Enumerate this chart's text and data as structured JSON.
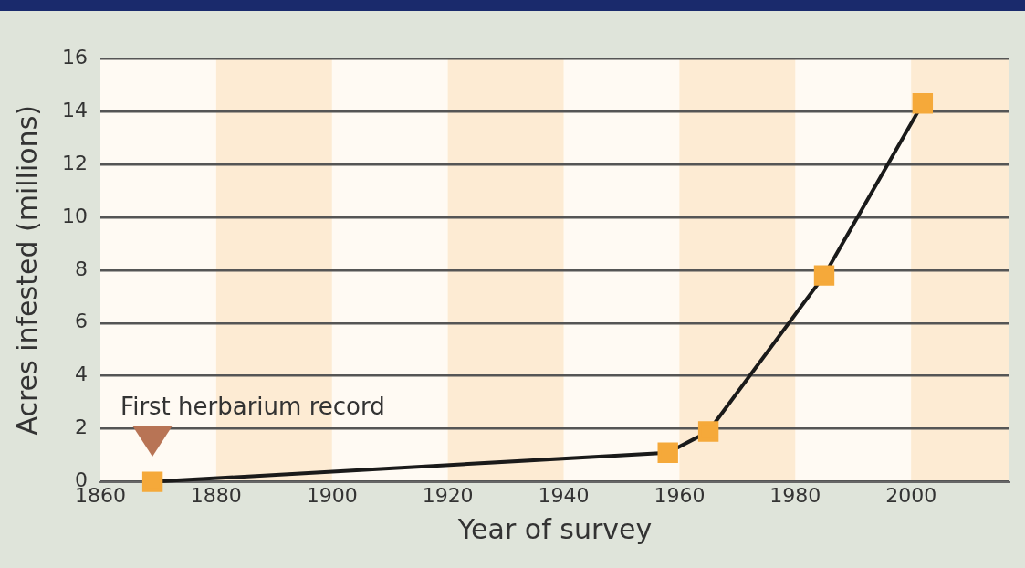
{
  "chart_data": {
    "type": "line",
    "xlabel": "Year of survey",
    "ylabel": "Acres infested (millions)",
    "x": [
      1869,
      1958,
      1965,
      1985,
      2002
    ],
    "series": [
      {
        "color": "#f5a93a",
        "values": [
          0,
          1.1,
          1.9,
          7.8,
          14.3
        ]
      }
    ],
    "xlim": [
      1860,
      2017
    ],
    "xticks": [
      1860,
      1880,
      1900,
      1920,
      1940,
      1960,
      1980,
      2000
    ],
    "ylim": [
      0,
      16
    ],
    "yticks": [
      0,
      2,
      4,
      6,
      8,
      10,
      12,
      14,
      16
    ],
    "grid": "y",
    "legend": false,
    "marker": "square",
    "line_style": "solid",
    "bands": [
      {
        "axis": "x",
        "from": 1880,
        "to": 1900,
        "color": "#fdebd3"
      },
      {
        "axis": "x",
        "from": 1920,
        "to": 1940,
        "color": "#fdebd3"
      },
      {
        "axis": "x",
        "from": 1960,
        "to": 1980,
        "color": "#fdebd3"
      },
      {
        "axis": "x",
        "from": 2000,
        "to": 2017,
        "color": "#fdebd3"
      }
    ],
    "annotations": [
      {
        "text": "First herbarium record",
        "x": 1869,
        "y": 0
      }
    ]
  }
}
